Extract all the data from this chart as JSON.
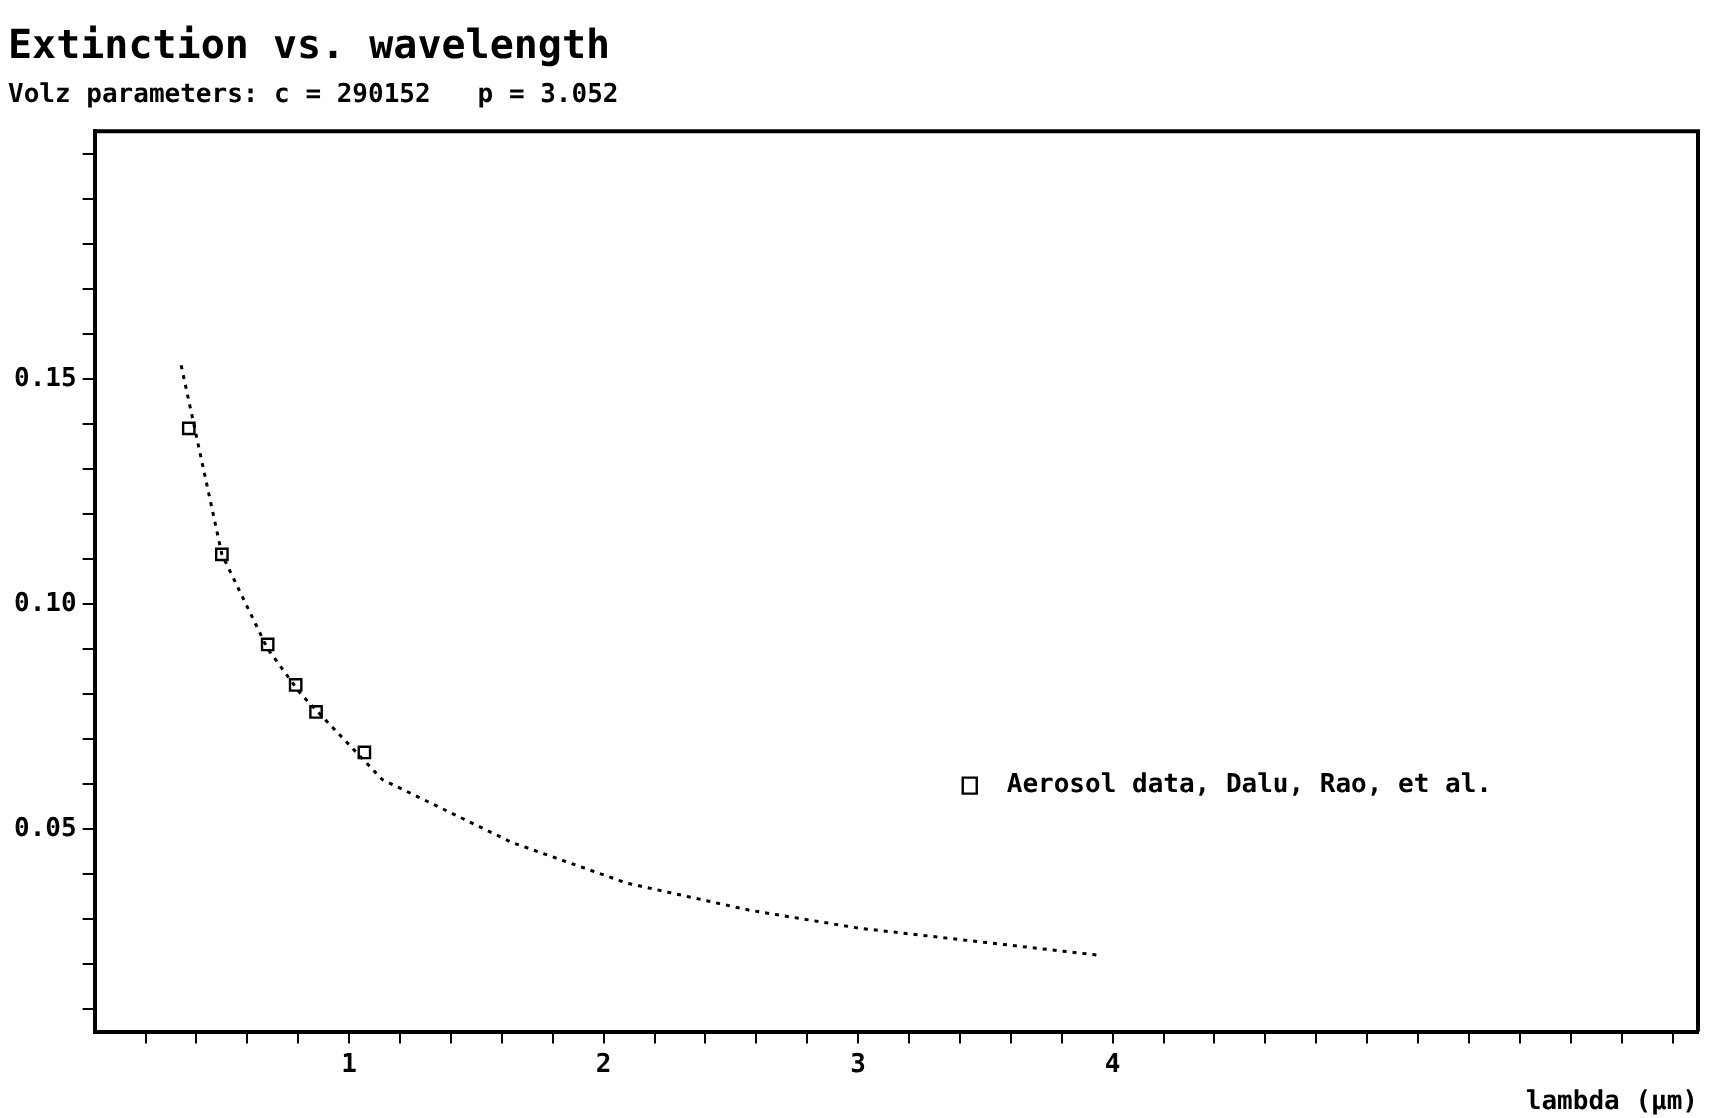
{
  "chart_data": {
    "type": "scatter",
    "title": "Extinction vs. wavelength",
    "subtitle": "Volz parameters: c = 290152   p = 3.052",
    "xlabel": "lambda (μm)",
    "series": [
      {
        "type": "line",
        "color": "#000000",
        "line_style": "dotted",
        "marker": "none",
        "x": [
          0.34,
          0.5,
          0.68,
          0.81,
          1.13,
          1.64,
          2.09,
          2.57,
          3.0,
          3.94
        ],
        "values": [
          0.153,
          0.111,
          0.09,
          0.08,
          0.061,
          0.047,
          0.038,
          0.032,
          0.028,
          0.022
        ]
      },
      {
        "name": "Aerosol data, Dalu, Rao, et al.",
        "color": "#000000",
        "marker": "square",
        "x": [
          0.37,
          0.5,
          0.68,
          0.79,
          0.87,
          1.06
        ],
        "values": [
          0.139,
          0.111,
          0.091,
          0.082,
          0.076,
          0.067
        ]
      }
    ],
    "xlim": [
      0,
      6.3
    ],
    "ylim": [
      0.005,
      0.205
    ],
    "xticks": [
      {
        "value": 0.2,
        "label": null
      },
      {
        "value": 0.4,
        "label": null
      },
      {
        "value": 0.6,
        "label": null
      },
      {
        "value": 0.8,
        "label": null
      },
      1,
      {
        "value": 1.2,
        "label": null
      },
      {
        "value": 1.4,
        "label": null
      },
      {
        "value": 1.6,
        "label": null
      },
      {
        "value": 1.8,
        "label": null
      },
      2,
      {
        "value": 2.2,
        "label": null
      },
      {
        "value": 2.4,
        "label": null
      },
      {
        "value": 2.6,
        "label": null
      },
      {
        "value": 2.8,
        "label": null
      },
      3,
      {
        "value": 3.2,
        "label": null
      },
      {
        "value": 3.4,
        "label": null
      },
      {
        "value": 3.6,
        "label": null
      },
      {
        "value": 3.8,
        "label": null
      },
      4,
      {
        "value": 4.2,
        "label": null
      },
      {
        "value": 4.4,
        "label": null
      },
      {
        "value": 4.6,
        "label": null
      },
      {
        "value": 4.8,
        "label": null
      },
      {
        "value": 5.0,
        "label": null
      },
      {
        "value": 5.2,
        "label": null
      },
      {
        "value": 5.4,
        "label": null
      },
      {
        "value": 5.6,
        "label": null
      },
      {
        "value": 5.8,
        "label": null
      },
      {
        "value": 6.0,
        "label": null
      },
      {
        "value": 6.2,
        "label": null
      }
    ],
    "yticks": [
      {
        "value": 0.01,
        "label": null
      },
      {
        "value": 0.02,
        "label": null
      },
      {
        "value": 0.03,
        "label": null
      },
      {
        "value": 0.04,
        "label": null
      },
      {
        "value": 0.05,
        "label": "0.05"
      },
      {
        "value": 0.06,
        "label": null
      },
      {
        "value": 0.07,
        "label": null
      },
      {
        "value": 0.08,
        "label": null
      },
      {
        "value": 0.09,
        "label": null
      },
      {
        "value": 0.1,
        "label": "0.10"
      },
      {
        "value": 0.11,
        "label": null
      },
      {
        "value": 0.12,
        "label": null
      },
      {
        "value": 0.13,
        "label": null
      },
      {
        "value": 0.14,
        "label": null
      },
      {
        "value": 0.15,
        "label": "0.15"
      },
      {
        "value": 0.16,
        "label": null
      },
      {
        "value": 0.17,
        "label": null
      },
      {
        "value": 0.18,
        "label": null
      },
      {
        "value": 0.19,
        "label": null
      },
      {
        "value": 0.2,
        "label": null
      }
    ],
    "grid": false,
    "legend": "bottom right"
  }
}
